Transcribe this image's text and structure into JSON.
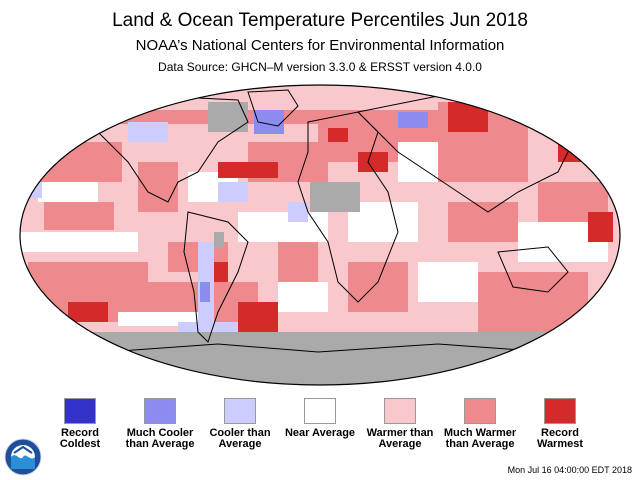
{
  "header": {
    "title": "Land & Ocean Temperature Percentiles Jun 2018",
    "subtitle": "NOAA’s National Centers for Environmental Information",
    "source": "Data Source: GHCN–M version 3.3.0 & ERSST version 4.0.0"
  },
  "legend": [
    {
      "label": "Record Coldest",
      "color": "#3333cc"
    },
    {
      "label": "Much Cooler than Average",
      "color": "#8c8cf0"
    },
    {
      "label": "Cooler than Average",
      "color": "#ccccff"
    },
    {
      "label": "Near Average",
      "color": "#ffffff"
    },
    {
      "label": "Warmer than Average",
      "color": "#f9c8cc"
    },
    {
      "label": "Much Warmer than Average",
      "color": "#ee8a8e"
    },
    {
      "label": "Record Warmest",
      "color": "#d42a2a"
    }
  ],
  "map": {
    "projection": "robinson",
    "no_data_color": "#aaaaaa",
    "ocean_base_color": "#f9c8cc"
  },
  "logo": {
    "icon": "noaa-logo-icon"
  },
  "footer": {
    "timestamp": "Mon Jul 16 04:00:00 EDT 2018"
  }
}
